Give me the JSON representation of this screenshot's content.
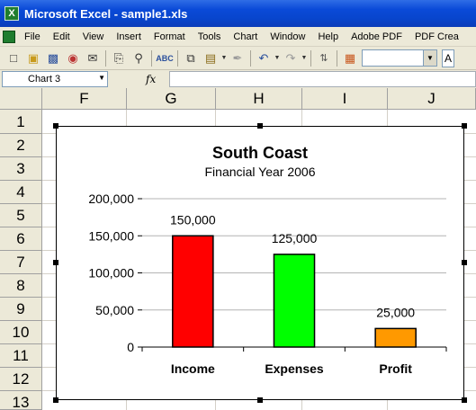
{
  "window": {
    "title": "Microsoft Excel - sample1.xls",
    "app_icon": "X"
  },
  "menu": [
    "File",
    "Edit",
    "View",
    "Insert",
    "Format",
    "Tools",
    "Chart",
    "Window",
    "Help",
    "Adobe PDF",
    "PDF Crea"
  ],
  "toolbar": {
    "icons": [
      "new-icon",
      "open-icon",
      "save-icon",
      "permission-icon",
      "email-icon",
      "print-icon",
      "print-preview-icon",
      "spelling-icon",
      "copy-icon",
      "paste-icon",
      "format-painter-icon",
      "undo-icon",
      "redo-icon",
      "sort-icon",
      "chart-wizard-icon"
    ],
    "font_box": "A"
  },
  "formula_bar": {
    "name_box": "Chart 3",
    "fx_label": "fx",
    "formula": ""
  },
  "columns": [
    "F",
    "G",
    "H",
    "I",
    "J"
  ],
  "rows": [
    "1",
    "2",
    "3",
    "4",
    "5",
    "6",
    "7",
    "8",
    "9",
    "10",
    "11",
    "12",
    "13"
  ],
  "chart_data": {
    "type": "bar",
    "title": "South Coast",
    "subtitle": "Financial Year 2006",
    "categories": [
      "Income",
      "Expenses",
      "Profit"
    ],
    "values": [
      150000,
      125000,
      25000
    ],
    "data_labels": [
      "150,000",
      "125,000",
      "25,000"
    ],
    "colors": [
      "#ff0000",
      "#00ff00",
      "#ff9900"
    ],
    "ylim": [
      0,
      200000
    ],
    "yticks": [
      0,
      50000,
      100000,
      150000,
      200000
    ],
    "ytick_labels": [
      "0",
      "50,000",
      "100,000",
      "150,000",
      "200,000"
    ],
    "grid": true,
    "legend": false
  }
}
